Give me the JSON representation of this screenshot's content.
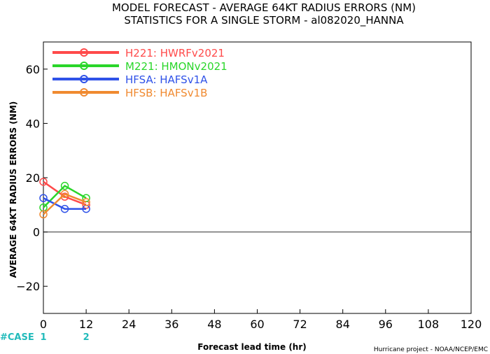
{
  "chart_data": {
    "type": "line",
    "title": "MODEL FORECAST - AVERAGE 64KT RADIUS ERRORS (NM)",
    "subtitle": "STATISTICS FOR A SINGLE STORM - al082020_HANNA",
    "xlabel": "Forecast lead time (hr)",
    "ylabel": "AVERAGE 64KT RADIUS ERRORS (NM)",
    "xlim": [
      0,
      120
    ],
    "ylim": [
      -30,
      70
    ],
    "xticks": [
      0,
      12,
      24,
      36,
      48,
      60,
      72,
      84,
      96,
      108,
      120
    ],
    "yticks": [
      -20,
      0,
      20,
      40,
      60
    ],
    "zero_line": true,
    "grid": false,
    "legend_position": "top-left",
    "x": [
      0,
      6,
      12
    ],
    "series": [
      {
        "name": "H221: HWRFv2021",
        "color": "#ff4a4a",
        "values": [
          18.5,
          13,
          10
        ]
      },
      {
        "name": "M221: HMONv2021",
        "color": "#2ad62a",
        "values": [
          9,
          17,
          12.5
        ]
      },
      {
        "name": "HFSA: HAFSv1A",
        "color": "#2f52e8",
        "values": [
          12.5,
          8.5,
          8.5
        ]
      },
      {
        "name": "HFSB: HAFSv1B",
        "color": "#f08a30",
        "values": [
          6.5,
          14,
          11
        ]
      }
    ],
    "case_label": "#CASE",
    "case_color": "#22bbbb",
    "cases": [
      {
        "x": 0,
        "count": "1"
      },
      {
        "x": 12,
        "count": "2"
      }
    ]
  },
  "credit": "Hurricane project - NOAA/NCEP/EMC"
}
